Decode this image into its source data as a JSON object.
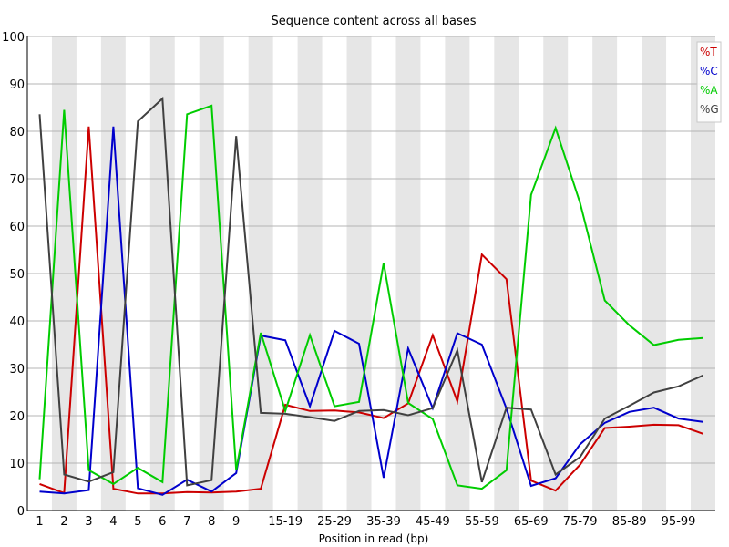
{
  "chart_data": {
    "type": "line",
    "title": "Sequence content across all bases",
    "xlabel": "Position in read (bp)",
    "ylabel": "",
    "ylim": [
      0,
      100
    ],
    "yticks": [
      0,
      10,
      20,
      30,
      40,
      50,
      60,
      70,
      80,
      90,
      100
    ],
    "categories": [
      "1",
      "2",
      "3",
      "4",
      "5",
      "6",
      "7",
      "8",
      "9",
      "10-14",
      "15-19",
      "20-24",
      "25-29",
      "30-34",
      "35-39",
      "40-44",
      "45-49",
      "50-54",
      "55-59",
      "60-64",
      "65-69",
      "70-74",
      "75-79",
      "80-84",
      "85-89",
      "90-94",
      "95-99",
      "100-101"
    ],
    "tick_labels": [
      "1",
      "2",
      "3",
      "4",
      "5",
      "6",
      "7",
      "8",
      "9",
      "",
      "15-19",
      "",
      "25-29",
      "",
      "35-39",
      "",
      "45-49",
      "",
      "55-59",
      "",
      "65-69",
      "",
      "75-79",
      "",
      "85-89",
      "",
      "95-99",
      ""
    ],
    "grid": true,
    "alternating_band_color": "#e6e6e6",
    "legend_position": "top-right",
    "series": [
      {
        "name": "%T",
        "color": "#cc0000",
        "values": [
          5.6,
          3.7,
          81.0,
          4.6,
          3.6,
          3.6,
          3.9,
          3.8,
          4.0,
          4.6,
          22.3,
          21.0,
          21.1,
          20.7,
          19.5,
          22.6,
          37.0,
          23.0,
          54.0,
          48.8,
          6.3,
          4.2,
          9.7,
          17.4,
          17.7,
          18.1,
          18.0,
          16.2
        ]
      },
      {
        "name": "%C",
        "color": "#0000cc",
        "values": [
          4.0,
          3.6,
          4.3,
          81.0,
          4.7,
          3.3,
          6.5,
          4.0,
          7.9,
          36.9,
          35.9,
          22.0,
          37.9,
          35.2,
          6.9,
          34.2,
          21.6,
          37.4,
          35.0,
          21.5,
          5.2,
          6.8,
          14.0,
          18.5,
          20.8,
          21.7,
          19.4,
          18.7
        ]
      },
      {
        "name": "%A",
        "color": "#00cc00",
        "values": [
          6.6,
          84.5,
          8.5,
          5.6,
          9.0,
          6.0,
          83.6,
          85.4,
          8.5,
          37.5,
          21.0,
          37.0,
          22.0,
          22.9,
          52.2,
          22.7,
          19.3,
          5.3,
          4.6,
          8.5,
          66.6,
          80.7,
          64.8,
          44.3,
          39.1,
          34.9,
          36.0,
          36.4
        ]
      },
      {
        "name": "%G",
        "color": "#404040",
        "values": [
          83.6,
          7.6,
          6.1,
          8.1,
          82.1,
          86.9,
          5.3,
          6.4,
          79.0,
          20.6,
          20.4,
          19.7,
          18.9,
          21.0,
          21.2,
          20.1,
          21.6,
          33.8,
          6.0,
          21.7,
          21.3,
          7.6,
          11.3,
          19.4,
          22.1,
          24.9,
          26.2,
          28.5
        ]
      }
    ]
  }
}
